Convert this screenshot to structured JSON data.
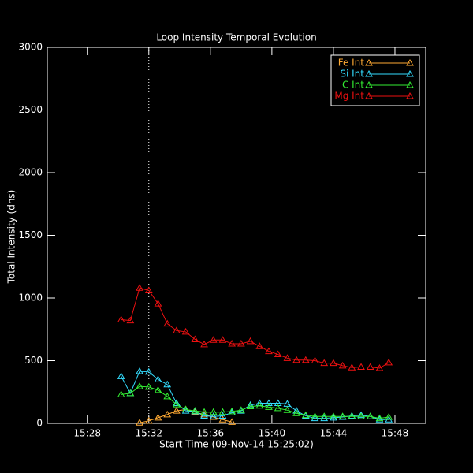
{
  "chart_data": {
    "type": "line",
    "title": "Loop Intensity Temporal Evolution",
    "xlabel": "Start Time (09-Nov-14 15:25:02)",
    "ylabel": "Total Intensity (dns)",
    "x": [
      30.2,
      30.8,
      31.4,
      32.0,
      32.6,
      33.2,
      33.8,
      34.4,
      35.0,
      35.6,
      36.2,
      36.8,
      37.4,
      38.0,
      38.6,
      39.2,
      39.8,
      40.4,
      41.0,
      41.6,
      42.2,
      42.8,
      43.4,
      44.0,
      44.6,
      45.2,
      45.8,
      46.4,
      47.0,
      47.6
    ],
    "series": [
      {
        "name": "Fe Int",
        "color": "#ffaa33",
        "values": [
          null,
          null,
          5,
          20,
          45,
          70,
          100,
          110,
          90,
          70,
          50,
          30,
          10,
          null,
          null,
          null,
          null,
          null,
          null,
          null,
          null,
          null,
          null,
          null,
          null,
          null,
          null,
          null,
          null,
          null
        ]
      },
      {
        "name": "Si Int",
        "color": "#33ddff",
        "values": [
          375,
          240,
          415,
          410,
          350,
          310,
          160,
          100,
          95,
          60,
          55,
          60,
          85,
          100,
          145,
          160,
          160,
          160,
          155,
          100,
          60,
          40,
          40,
          45,
          50,
          60,
          65,
          55,
          30,
          30
        ]
      },
      {
        "name": "C Int",
        "color": "#33ee33",
        "values": [
          230,
          240,
          295,
          290,
          265,
          215,
          150,
          110,
          100,
          90,
          90,
          90,
          95,
          105,
          135,
          140,
          130,
          120,
          105,
          80,
          65,
          55,
          55,
          55,
          55,
          55,
          55,
          55,
          40,
          50
        ]
      },
      {
        "name": "Mg Int",
        "color": "#ee1111",
        "values": [
          827,
          820,
          1080,
          1060,
          955,
          795,
          740,
          730,
          670,
          630,
          665,
          665,
          635,
          635,
          655,
          615,
          575,
          550,
          520,
          505,
          505,
          500,
          480,
          480,
          460,
          445,
          450,
          450,
          440,
          485
        ]
      }
    ],
    "xlim": [
      25.4,
      50.0
    ],
    "xticks": [
      {
        "value": 28,
        "label": "15:28"
      },
      {
        "value": 32,
        "label": "15:32"
      },
      {
        "value": 36,
        "label": "15:36"
      },
      {
        "value": 40,
        "label": "15:40"
      },
      {
        "value": 44,
        "label": "15:44"
      },
      {
        "value": 48,
        "label": "15:48"
      }
    ],
    "ylim": [
      0,
      3000
    ],
    "yticks": [
      0,
      500,
      1000,
      1500,
      2000,
      2500,
      3000
    ],
    "vline": 32,
    "legend": "upper right"
  }
}
